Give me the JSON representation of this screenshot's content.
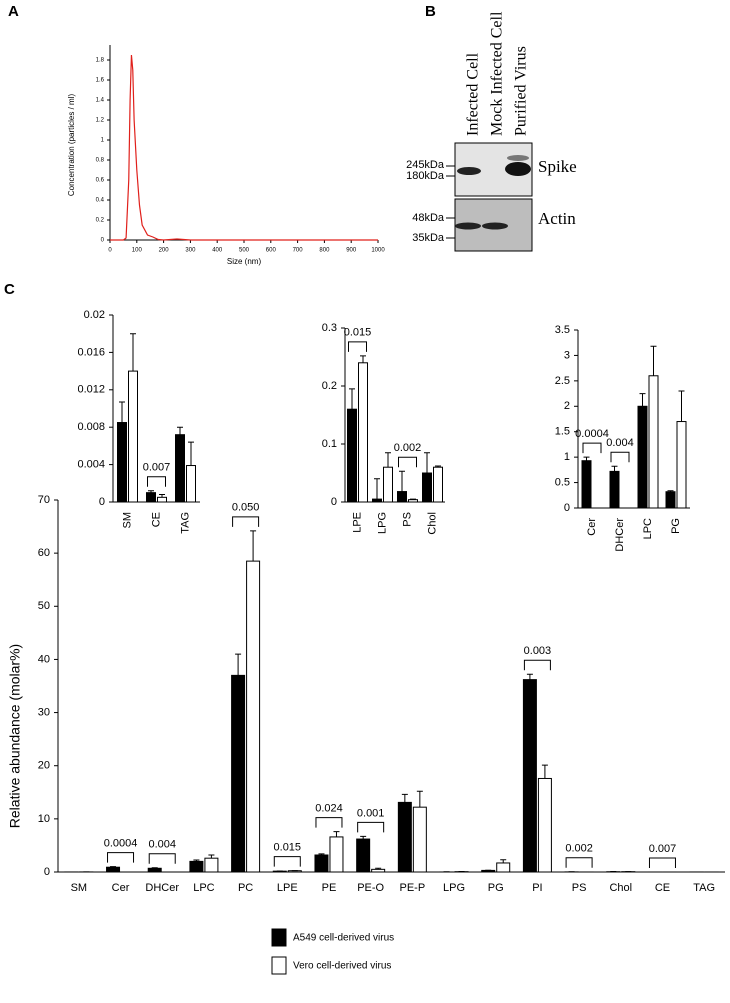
{
  "panel_labels": [
    "A",
    "B",
    "C"
  ],
  "blot": {
    "lanes": [
      "Infected Cell",
      "Mock Infected Cell",
      "Purified Virus"
    ],
    "markers": [
      "245kDa",
      "180kDa",
      "48kDa",
      "35kDa"
    ],
    "proteins": [
      "Spike",
      "Actin"
    ]
  },
  "chart_data": [
    {
      "type": "line",
      "x_label": "Size (nm)",
      "y_label": "Concentration (particles / ml)",
      "x": [
        0,
        50,
        60,
        70,
        75,
        80,
        85,
        90,
        100,
        110,
        120,
        140,
        160,
        180,
        200,
        250,
        300,
        1000
      ],
      "series": [
        {
          "color": "#e0201b",
          "values": [
            0,
            0,
            0.02,
            0.6,
            1.4,
            1.85,
            1.7,
            1.2,
            0.7,
            0.35,
            0.15,
            0.05,
            0.03,
            0.005,
            0,
            0.01,
            0,
            0
          ]
        }
      ],
      "xlim": [
        0,
        1000
      ],
      "xticks": [
        0,
        100,
        200,
        300,
        400,
        500,
        600,
        700,
        800,
        900,
        1000
      ],
      "ylim": [
        0,
        1.9
      ],
      "yticks": [
        0,
        0.2,
        0.4,
        0.6,
        0.8,
        1,
        1.2,
        1.4,
        1.6,
        1.8
      ]
    },
    {
      "type": "bar",
      "y_label": "Relative abundance (molar%)",
      "categories": [
        "SM",
        "Cer",
        "DHCer",
        "LPC",
        "PC",
        "LPE",
        "PE",
        "PE-O",
        "PE-P",
        "LPG",
        "PG",
        "PI",
        "PS",
        "Chol",
        "CE",
        "TAG"
      ],
      "series": [
        {
          "name": "A549 cell-derived virus",
          "color": "#000000",
          "values": [
            0.0085,
            0.9,
            0.7,
            2.0,
            37,
            0.16,
            3.2,
            6.2,
            13.1,
            0.005,
            0.3,
            36.2,
            0.02,
            0.05,
            0.001,
            0.007
          ],
          "errors": [
            0.002,
            0.1,
            0.1,
            0.25,
            4,
            0.035,
            0.2,
            0.5,
            1.5,
            0.035,
            0.02,
            1,
            0.035,
            0.035,
            0.0002,
            0.0008
          ]
        },
        {
          "name": "Vero cell-derived virus",
          "color": "#ffffff",
          "values": [
            0.014,
            0,
            0,
            2.6,
            58.5,
            0.24,
            6.6,
            0.5,
            12.2,
            0.06,
            1.7,
            17.6,
            0.004,
            0.06,
            0.0005,
            0.004
          ],
          "errors": [
            0.004,
            0,
            0,
            0.6,
            5.7,
            0.012,
            1,
            0.2,
            3,
            0.025,
            0.6,
            2.5,
            0.001,
            0.002,
            0.0003,
            0.0025
          ]
        }
      ],
      "p_values": [
        null,
        "0.0004",
        "0.004",
        null,
        "0.050",
        "0.015",
        "0.024",
        "0.001",
        null,
        null,
        null,
        "0.003",
        "0.002",
        null,
        "0.007",
        null
      ],
      "ylim": [
        0,
        70
      ],
      "yticks": [
        0,
        10,
        20,
        30,
        40,
        50,
        60,
        70
      ]
    },
    {
      "type": "bar",
      "categories": [
        "SM",
        "CE",
        "TAG"
      ],
      "series": [
        {
          "color": "#000000",
          "values": [
            0.0085,
            0.001,
            0.0072
          ],
          "errors": [
            0.0022,
            0.0002,
            0.0008
          ]
        },
        {
          "color": "#ffffff",
          "values": [
            0.014,
            0.0005,
            0.0039
          ],
          "errors": [
            0.004,
            0.0003,
            0.0025
          ]
        }
      ],
      "p_values": [
        null,
        "0.007",
        null
      ],
      "ylim": [
        0,
        0.02
      ],
      "yticks": [
        0,
        0.004,
        0.008,
        0.012,
        0.016,
        0.02
      ]
    },
    {
      "type": "bar",
      "categories": [
        "LPE",
        "LPG",
        "PS",
        "Chol"
      ],
      "series": [
        {
          "color": "#000000",
          "values": [
            0.16,
            0.005,
            0.018,
            0.05
          ],
          "errors": [
            0.035,
            0.035,
            0.035,
            0.035
          ]
        },
        {
          "color": "#ffffff",
          "values": [
            0.24,
            0.06,
            0.004,
            0.06
          ],
          "errors": [
            0.012,
            0.025,
            0.001,
            0.002
          ]
        }
      ],
      "p_values": [
        "0.015",
        null,
        "0.002",
        null
      ],
      "ylim": [
        0,
        0.3
      ],
      "yticks": [
        0,
        0.1,
        0.2,
        0.3
      ]
    },
    {
      "type": "bar",
      "categories": [
        "Cer",
        "DHCer",
        "LPC",
        "PG"
      ],
      "series": [
        {
          "color": "#000000",
          "values": [
            0.93,
            0.72,
            2.0,
            0.32
          ],
          "errors": [
            0.07,
            0.1,
            0.25,
            0.02
          ]
        },
        {
          "color": "#ffffff",
          "values": [
            0,
            0,
            2.6,
            1.7
          ],
          "errors": [
            0,
            0,
            0.58,
            0.6
          ]
        }
      ],
      "p_values": [
        "0.0004",
        "0.004",
        null,
        null
      ],
      "ylim": [
        0,
        3.5
      ],
      "yticks": [
        0,
        0.5,
        1,
        1.5,
        2,
        2.5,
        3,
        3.5
      ]
    }
  ]
}
